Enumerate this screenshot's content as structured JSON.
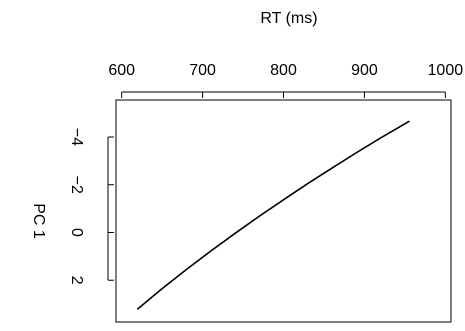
{
  "chart_data": {
    "type": "line",
    "title": "",
    "xlabel": "RT (ms)",
    "ylabel": "PC 1",
    "x_axis_position": "top",
    "y_axis_position": "left",
    "y_reversed": true,
    "xlim": [
      593,
      1007
    ],
    "ylim": [
      -5.55,
      3.75
    ],
    "xticks": [
      600,
      700,
      800,
      900,
      1000
    ],
    "xtick_labels": [
      "600",
      "700",
      "800",
      "900",
      "1000"
    ],
    "yticks": [
      -4,
      -2,
      0,
      2
    ],
    "ytick_labels": [
      "−4",
      "−2",
      "0",
      "2"
    ],
    "grid": false,
    "series": [
      {
        "name": "",
        "color": "#000000",
        "x": [
          620,
          650,
          680,
          710,
          740,
          770,
          800,
          830,
          860,
          890,
          920,
          955
        ],
        "y": [
          3.2,
          2.35,
          1.55,
          0.78,
          0.04,
          -0.68,
          -1.37,
          -2.05,
          -2.7,
          -3.34,
          -3.96,
          -4.65
        ]
      }
    ]
  }
}
